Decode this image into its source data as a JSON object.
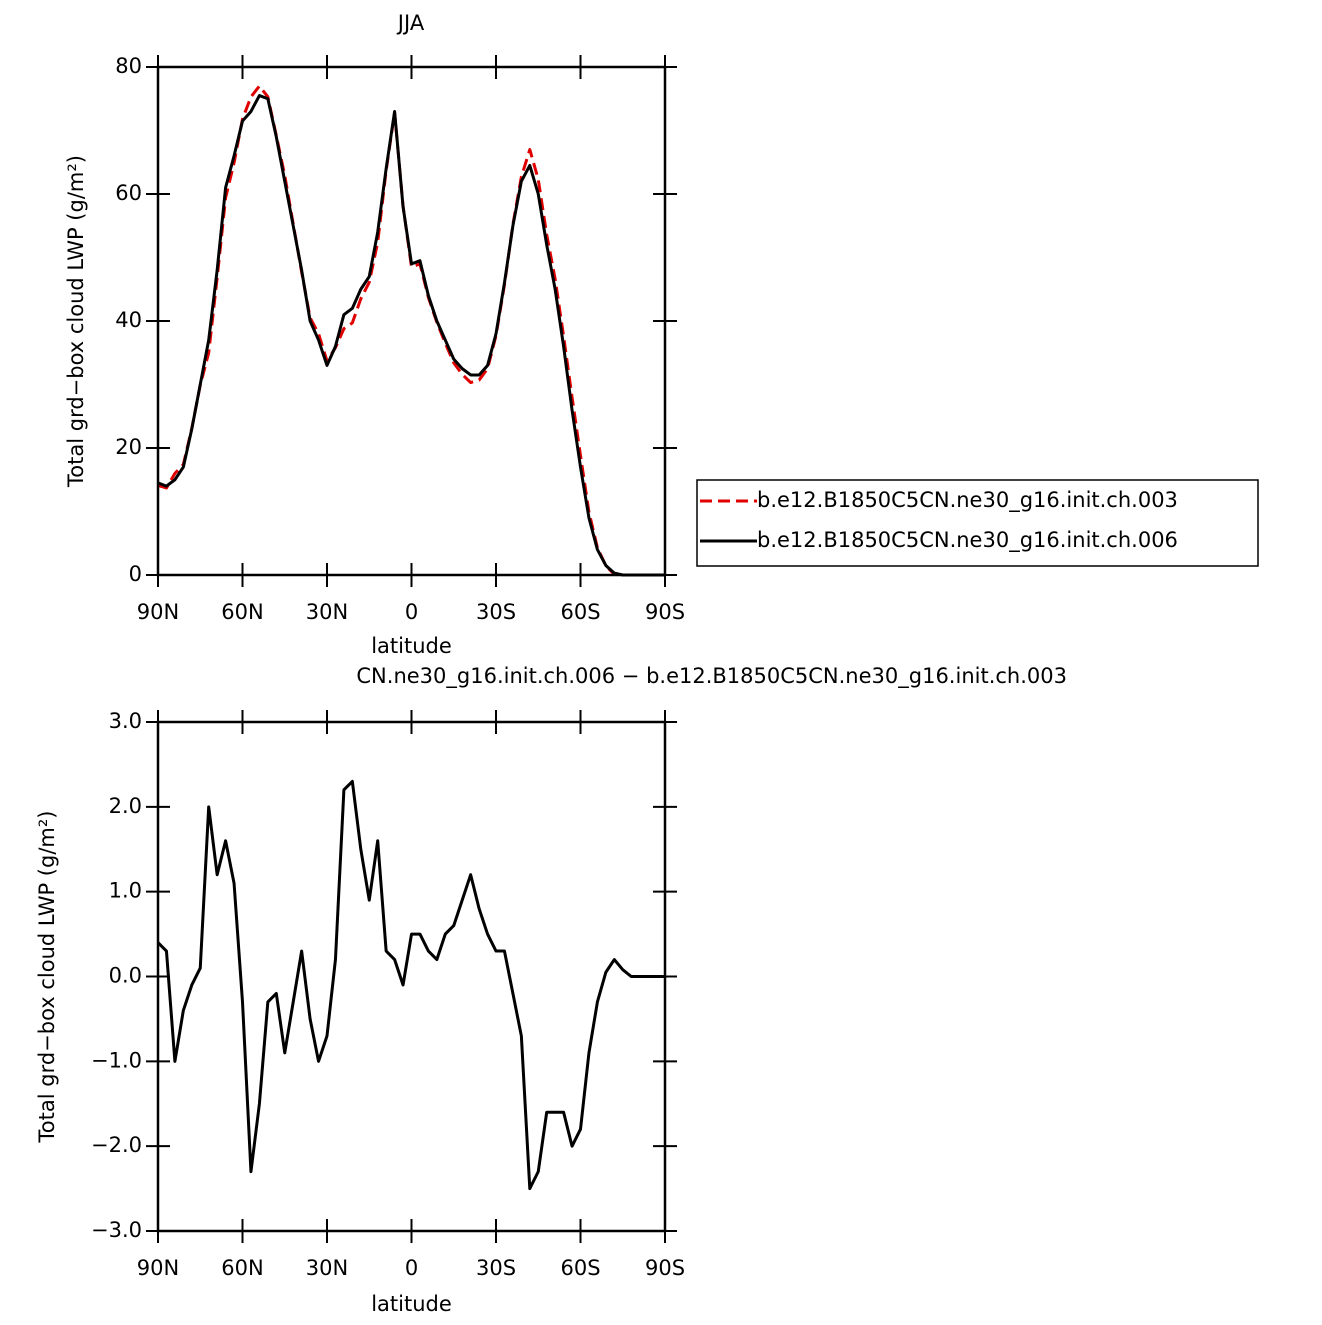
{
  "chart_data": [
    {
      "type": "line",
      "title": "JJA",
      "x_label": "latitude",
      "y_label": "Total grd−box cloud LWP (g/m²)",
      "x": [
        90,
        87,
        84,
        81,
        78,
        75,
        72,
        69,
        66,
        63,
        60,
        57,
        54,
        51,
        48,
        45,
        42,
        39,
        36,
        33,
        30,
        27,
        24,
        21,
        18,
        15,
        12,
        9,
        6,
        3,
        0,
        -3,
        -6,
        -9,
        -12,
        -15,
        -18,
        -21,
        -24,
        -27,
        -30,
        -33,
        -36,
        -39,
        -42,
        -45,
        -48,
        -51,
        -54,
        -57,
        -60,
        -63,
        -66,
        -69,
        -72,
        -75,
        -78,
        -81,
        -84,
        -87,
        -90
      ],
      "series": [
        {
          "name": "b.e12.B1850C5CN.ne30_g16.init.ch.003",
          "color": "#e00000",
          "dashed": true,
          "values": [
            14.1,
            13.7,
            16,
            17.4,
            23.1,
            29.9,
            35,
            46.8,
            59.4,
            64.9,
            71.8,
            75.3,
            77,
            75.3,
            69.2,
            62.9,
            55.3,
            47.7,
            40.5,
            38,
            33.7,
            35.8,
            38.8,
            39.7,
            43.5,
            46.1,
            52.4,
            63.7,
            72.8,
            58.1,
            48.5,
            49,
            43.7,
            39.8,
            36.5,
            33.4,
            31.6,
            30.3,
            30.7,
            32.5,
            37.7,
            45.7,
            55.2,
            62.7,
            67,
            62.3,
            53.6,
            46.6,
            37.6,
            28,
            18.8,
            9.9,
            4.3,
            1.45,
            0.1,
            0,
            0,
            0,
            0,
            0,
            0
          ]
        },
        {
          "name": "b.e12.B1850C5CN.ne30_g16.init.ch.006",
          "color": "#000000",
          "dashed": false,
          "values": [
            14.5,
            14,
            15,
            17,
            23,
            30,
            37,
            48,
            61,
            66,
            71.5,
            73,
            75.5,
            75,
            69,
            62,
            55,
            48,
            40,
            37,
            33,
            36,
            41,
            42,
            45,
            47,
            54,
            64,
            73,
            58,
            49,
            49.5,
            44,
            40,
            37,
            34,
            32.5,
            31.5,
            31.5,
            33,
            38,
            46,
            55,
            62,
            64.5,
            60,
            52,
            45,
            36,
            26,
            17,
            9,
            4,
            1.5,
            0.3,
            0,
            0,
            0,
            0,
            0,
            0
          ]
        }
      ],
      "xlim": [
        90,
        -90
      ],
      "xticks": [
        {
          "value": 90,
          "label": "90N"
        },
        {
          "value": 60,
          "label": "60N"
        },
        {
          "value": 30,
          "label": "30N"
        },
        0,
        {
          "value": -30,
          "label": "30S"
        },
        {
          "value": -60,
          "label": "60S"
        },
        {
          "value": -90,
          "label": "90S"
        }
      ],
      "ylim": [
        0,
        80
      ],
      "yticks": [
        0,
        20,
        40,
        60,
        80
      ],
      "legend": "right"
    },
    {
      "type": "line",
      "title": "CN.ne30_g16.init.ch.006 − b.e12.B1850C5CN.ne30_g16.init.ch.003",
      "x_label": "latitude",
      "y_label": "Total grd−box cloud LWP (g/m²)",
      "x": [
        90,
        87,
        84,
        81,
        78,
        75,
        72,
        69,
        66,
        63,
        60,
        57,
        54,
        51,
        48,
        45,
        42,
        39,
        36,
        33,
        30,
        27,
        24,
        21,
        18,
        15,
        12,
        9,
        6,
        3,
        0,
        -3,
        -6,
        -9,
        -12,
        -15,
        -18,
        -21,
        -24,
        -27,
        -30,
        -33,
        -36,
        -39,
        -42,
        -45,
        -48,
        -51,
        -54,
        -57,
        -60,
        -63,
        -66,
        -69,
        -72,
        -75,
        -78,
        -81,
        -84,
        -87,
        -90
      ],
      "series": [
        {
          "color": "#000000",
          "dashed": false,
          "values": [
            0.4,
            0.3,
            -1.0,
            -0.4,
            -0.1,
            0.1,
            2.0,
            1.2,
            1.6,
            1.1,
            -0.3,
            -2.3,
            -1.5,
            -0.3,
            -0.2,
            -0.9,
            -0.3,
            0.3,
            -0.5,
            -1.0,
            -0.7,
            0.2,
            2.2,
            2.3,
            1.5,
            0.9,
            1.6,
            0.3,
            0.2,
            -0.1,
            0.5,
            0.5,
            0.3,
            0.2,
            0.5,
            0.6,
            0.9,
            1.2,
            0.8,
            0.5,
            0.3,
            0.3,
            -0.2,
            -0.7,
            -2.5,
            -2.3,
            -1.6,
            -1.6,
            -1.6,
            -2.0,
            -1.8,
            -0.9,
            -0.3,
            0.05,
            0.2,
            0.08,
            0,
            0,
            0,
            0,
            0
          ]
        }
      ],
      "xlim": [
        90,
        -90
      ],
      "xticks": [
        {
          "value": 90,
          "label": "90N"
        },
        {
          "value": 60,
          "label": "60N"
        },
        {
          "value": 30,
          "label": "30N"
        },
        0,
        {
          "value": -30,
          "label": "30S"
        },
        {
          "value": -60,
          "label": "60S"
        },
        {
          "value": -90,
          "label": "90S"
        }
      ],
      "ylim": [
        -3,
        3
      ],
      "yticks": [
        {
          "value": -3,
          "label": "−3.0"
        },
        {
          "value": -2,
          "label": "−2.0"
        },
        {
          "value": -1,
          "label": "−1.0"
        },
        {
          "value": 0,
          "label": "0.0"
        },
        {
          "value": 1,
          "label": "1.0"
        },
        {
          "value": 2,
          "label": "2.0"
        },
        {
          "value": 3,
          "label": "3.0"
        }
      ]
    }
  ]
}
